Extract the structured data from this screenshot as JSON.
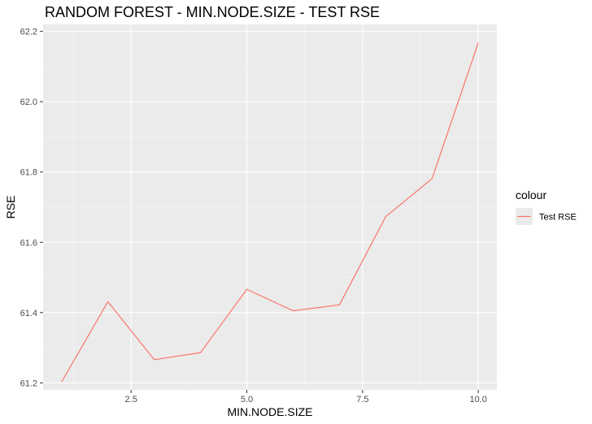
{
  "chart_data": {
    "type": "line",
    "title": "RANDOM FOREST - MIN.NODE.SIZE - TEST RSE",
    "xlabel": "MIN.NODE.SIZE",
    "ylabel": "RSE",
    "xlim": [
      0.6,
      10.4
    ],
    "ylim": [
      61.18,
      62.22
    ],
    "x_ticks": [
      2.5,
      5.0,
      7.5,
      10.0
    ],
    "x_tick_labels": [
      "2.5",
      "5.0",
      "7.5",
      "10.0"
    ],
    "y_ticks": [
      61.2,
      61.4,
      61.6,
      61.8,
      62.0,
      62.2
    ],
    "y_tick_labels": [
      "61.2",
      "61.4",
      "61.6",
      "61.8",
      "62.0",
      "62.2"
    ],
    "grid": true,
    "legend": {
      "title": "colour",
      "position": "right"
    },
    "series": [
      {
        "name": "Test RSE",
        "color": "#F8766D",
        "x": [
          1,
          2,
          3,
          4,
          5,
          6,
          7,
          8,
          9,
          10
        ],
        "y": [
          61.203,
          61.431,
          61.266,
          61.286,
          61.466,
          61.405,
          61.422,
          61.673,
          61.781,
          62.168
        ]
      }
    ]
  },
  "colors": {
    "panel_background": "#EBEBEB",
    "grid_major": "#FFFFFF",
    "grid_minor": "#F5F5F5",
    "tick": "#333333"
  }
}
